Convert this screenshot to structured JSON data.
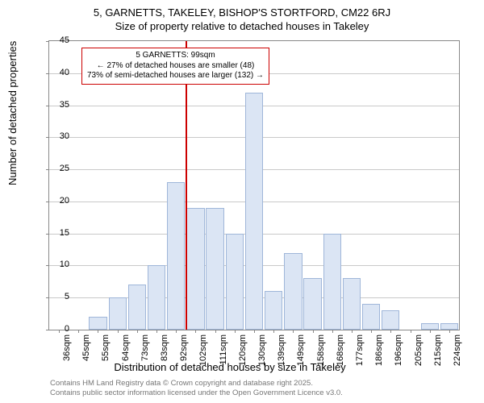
{
  "chart": {
    "type": "histogram",
    "title_line1": "5, GARNETTS, TAKELEY, BISHOP'S STORTFORD, CM22 6RJ",
    "title_line2": "Size of property relative to detached houses in Takeley",
    "ylabel": "Number of detached properties",
    "xlabel": "Distribution of detached houses by size in Takeley",
    "ylim": [
      0,
      45
    ],
    "ytick_step": 5,
    "yticks": [
      0,
      5,
      10,
      15,
      20,
      25,
      30,
      35,
      40,
      45
    ],
    "xticks": [
      "36sqm",
      "45sqm",
      "55sqm",
      "64sqm",
      "73sqm",
      "83sqm",
      "92sqm",
      "102sqm",
      "111sqm",
      "120sqm",
      "130sqm",
      "139sqm",
      "149sqm",
      "158sqm",
      "168sqm",
      "177sqm",
      "186sqm",
      "196sqm",
      "205sqm",
      "215sqm",
      "224sqm"
    ],
    "values": [
      0,
      0,
      2,
      5,
      7,
      10,
      23,
      19,
      19,
      15,
      37,
      6,
      12,
      8,
      15,
      8,
      4,
      3,
      0,
      1,
      1
    ],
    "bar_color": "#dbe5f4",
    "bar_border_color": "#9fb6d9",
    "background_color": "#ffffff",
    "grid_color": "#888888",
    "marker": {
      "position_index": 7,
      "color": "#cc0000",
      "box": {
        "line1": "5 GARNETTS: 99sqm",
        "line2": "← 27% of detached houses are smaller (48)",
        "line3": "73% of semi-detached houses are larger (132) →"
      }
    }
  },
  "attribution": {
    "line1": "Contains HM Land Registry data © Crown copyright and database right 2025.",
    "line2": "Contains public sector information licensed under the Open Government Licence v3.0."
  }
}
